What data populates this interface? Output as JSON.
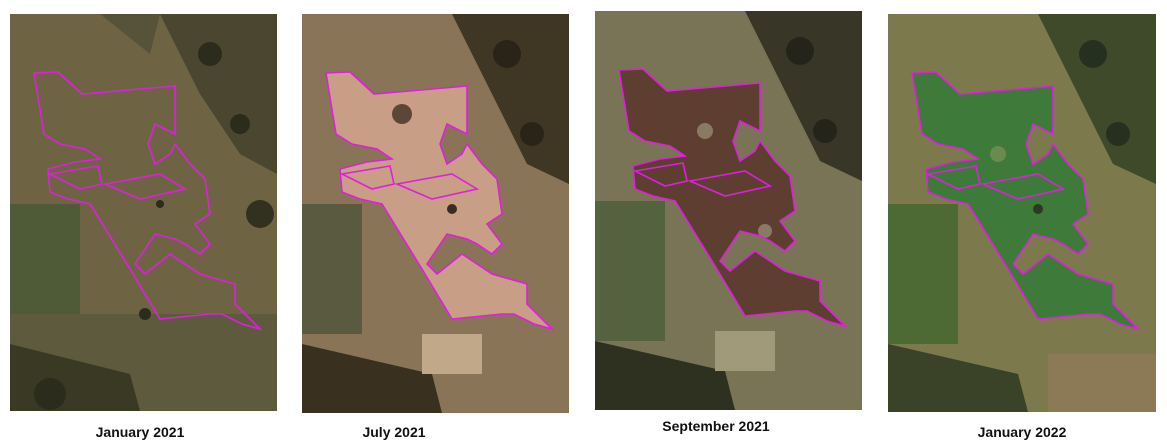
{
  "panels": [
    {
      "caption": "January 2021",
      "tone": "winter-brown-2021"
    },
    {
      "caption": "July 2021",
      "tone": "pink-bare-soil"
    },
    {
      "caption": "September 2021",
      "tone": "dark-burnt"
    },
    {
      "caption": "January 2022",
      "tone": "green-regrowth"
    }
  ],
  "outline_color": "#e01ee0"
}
